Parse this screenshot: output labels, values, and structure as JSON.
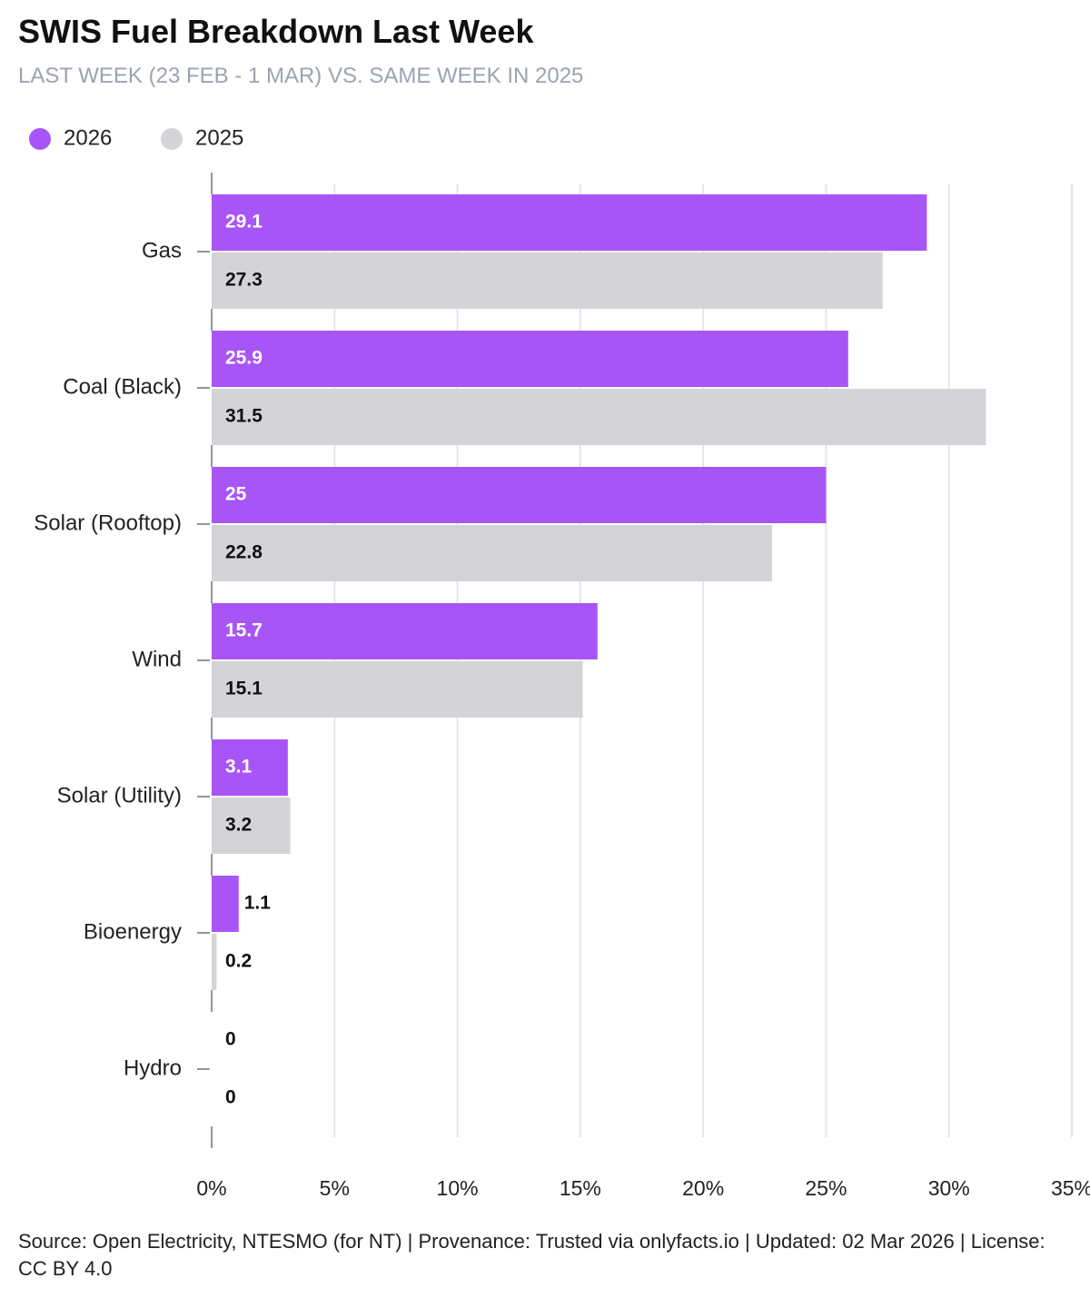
{
  "chart_data": {
    "type": "bar",
    "orientation": "horizontal",
    "title": "SWIS Fuel Breakdown Last Week",
    "subtitle": "LAST WEEK (23 FEB - 1 MAR) VS. SAME WEEK IN 2025",
    "categories": [
      "Gas",
      "Coal (Black)",
      "Solar (Rooftop)",
      "Wind",
      "Solar (Utility)",
      "Bioenergy",
      "Hydro"
    ],
    "series": [
      {
        "name": "2026",
        "color": "#a855f7",
        "values": [
          29.1,
          25.9,
          25,
          15.7,
          3.1,
          1.1,
          0
        ]
      },
      {
        "name": "2025",
        "color": "#d4d4d8",
        "values": [
          27.3,
          31.5,
          22.8,
          15.1,
          3.2,
          0.2,
          0
        ]
      }
    ],
    "xlim": [
      0,
      35
    ],
    "xticks": [
      {
        "value": 0,
        "label": "0%"
      },
      {
        "value": 5,
        "label": "5%"
      },
      {
        "value": 10,
        "label": "10%"
      },
      {
        "value": 15,
        "label": "15%"
      },
      {
        "value": 20,
        "label": "20%"
      },
      {
        "value": 25,
        "label": "25%"
      },
      {
        "value": 30,
        "label": "30%"
      },
      {
        "value": 35,
        "label": "35%"
      }
    ],
    "grid": true,
    "legend": "top-left",
    "footer": "Source: Open Electricity, NTESMO (for NT) | Provenance: Trusted via onlyfacts.io | Updated: 02 Mar 2026 | License: CC BY 4.0"
  }
}
